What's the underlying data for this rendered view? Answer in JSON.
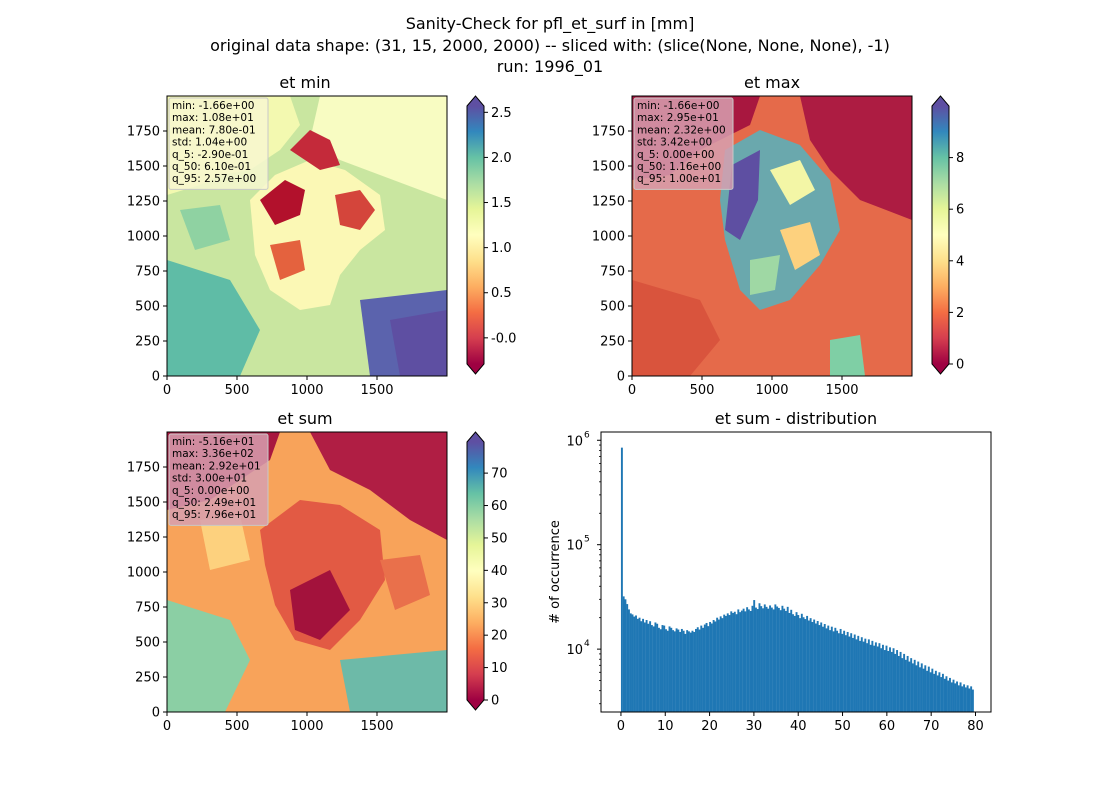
{
  "figure": {
    "title_lines": [
      "Sanity-Check for pfl_et_surf in [mm]",
      "original data shape: (31, 15, 2000, 2000) -- sliced with: (slice(None, None, None), -1)",
      "run: 1996_01"
    ]
  },
  "chart_data": [
    {
      "type": "heatmap",
      "title": "et min",
      "colormap": "Spectral",
      "xlim": [
        0,
        2000
      ],
      "ylim": [
        0,
        2000
      ],
      "x_ticks": [
        "0",
        "500",
        "1000",
        "1500"
      ],
      "y_ticks": [
        "0",
        "250",
        "500",
        "750",
        "1000",
        "1250",
        "1500",
        "1750"
      ],
      "colorbar": {
        "vmin": -0.29,
        "vmax": 2.57,
        "extend": "both",
        "ticks": [
          "-0.0",
          "0.5",
          "1.0",
          "1.5",
          "2.0",
          "2.5"
        ],
        "tick_values": [
          0,
          0.5,
          1.0,
          1.5,
          2.0,
          2.5
        ]
      },
      "stats": [
        "min: -1.66e+00",
        "max: 1.08e+01",
        "mean: 7.80e-01",
        "std: 1.04e+00",
        "q_5: -2.90e-01",
        "q_50: 6.10e-01",
        "q_95: 2.57e+00"
      ],
      "stats_box_color": "#f7f7d0"
    },
    {
      "type": "heatmap",
      "title": "et max",
      "colormap": "Spectral",
      "xlim": [
        0,
        2000
      ],
      "ylim": [
        0,
        2000
      ],
      "x_ticks": [
        "0",
        "500",
        "1000",
        "1500"
      ],
      "y_ticks": [
        "0",
        "250",
        "500",
        "750",
        "1000",
        "1250",
        "1500",
        "1750"
      ],
      "colorbar": {
        "vmin": 0,
        "vmax": 10,
        "extend": "both",
        "ticks": [
          "0",
          "2",
          "4",
          "6",
          "8"
        ],
        "tick_values": [
          0,
          2,
          4,
          6,
          8
        ]
      },
      "stats": [
        "min: -1.66e+00",
        "max: 2.95e+01",
        "mean: 2.32e+00",
        "std: 3.42e+00",
        "q_5: 0.00e+00",
        "q_50: 1.16e+00",
        "q_95: 1.00e+01"
      ],
      "stats_box_color": "#d7a0b0"
    },
    {
      "type": "heatmap",
      "title": "et sum",
      "colormap": "Spectral",
      "xlim": [
        0,
        2000
      ],
      "ylim": [
        0,
        2000
      ],
      "x_ticks": [
        "0",
        "500",
        "1000",
        "1500"
      ],
      "y_ticks": [
        "0",
        "250",
        "500",
        "750",
        "1000",
        "1250",
        "1500",
        "1750"
      ],
      "colorbar": {
        "vmin": 0,
        "vmax": 79.6,
        "extend": "both",
        "ticks": [
          "0",
          "10",
          "20",
          "30",
          "40",
          "50",
          "60",
          "70"
        ],
        "tick_values": [
          0,
          10,
          20,
          30,
          40,
          50,
          60,
          70
        ]
      },
      "stats": [
        "min: -5.16e+01",
        "max: 3.36e+02",
        "mean: 2.92e+01",
        "std: 3.00e+01",
        "q_5: 0.00e+00",
        "q_50: 2.49e+01",
        "q_95: 7.96e+01"
      ],
      "stats_box_color": "#d7a0b0"
    },
    {
      "type": "bar",
      "title": "et sum - distribution",
      "ylabel": "# of occurrence",
      "xlabel": "",
      "yscale": "log",
      "color": "#1f77b4",
      "xlim": [
        -4.5,
        83.5
      ],
      "ylim": [
        2500,
        1200000
      ],
      "x_ticks": [
        0,
        10,
        20,
        30,
        40,
        50,
        60,
        70,
        80
      ],
      "y_ticks": [
        {
          "value": 10000,
          "base": "10",
          "exp": "4"
        },
        {
          "value": 100000,
          "base": "10",
          "exp": "5"
        },
        {
          "value": 1000000,
          "base": "10",
          "exp": "6"
        }
      ],
      "bins": {
        "start": 0,
        "end": 79.6,
        "count": 200
      },
      "values": [
        850000,
        32000,
        30000,
        27000,
        24000,
        22000,
        21500,
        20500,
        21000,
        19500,
        20000,
        18500,
        19500,
        18000,
        19000,
        17500,
        18500,
        17000,
        16500,
        18000,
        17500,
        16000,
        15500,
        17000,
        16800,
        15500,
        15000,
        16500,
        16000,
        15200,
        14800,
        15800,
        15400,
        14600,
        15600,
        15000,
        14000,
        15200,
        14800,
        14400,
        15000,
        14600,
        15600,
        16200,
        15400,
        16800,
        16000,
        17200,
        17800,
        16600,
        18200,
        17600,
        19000,
        18400,
        20000,
        19200,
        20600,
        19800,
        21400,
        20800,
        22000,
        21200,
        23000,
        22200,
        22800,
        21600,
        24000,
        22600,
        23400,
        24400,
        23000,
        25200,
        24000,
        23200,
        26000,
        29500,
        25000,
        24200,
        27500,
        25800,
        24600,
        26800,
        25400,
        24400,
        26200,
        25000,
        24000,
        26800,
        25600,
        24800,
        23600,
        26000,
        24400,
        23200,
        25400,
        22200,
        23800,
        21600,
        20800,
        22600,
        21200,
        19800,
        21800,
        20200,
        19400,
        20800,
        18800,
        19800,
        18200,
        19200,
        17600,
        18600,
        17000,
        18000,
        16400,
        17400,
        15800,
        16800,
        15200,
        16400,
        14800,
        16000,
        15000,
        14200,
        15600,
        14000,
        15000,
        13600,
        14600,
        13200,
        14200,
        12800,
        13800,
        12400,
        13400,
        12000,
        13000,
        11800,
        12600,
        11400,
        12400,
        11000,
        12000,
        10800,
        11600,
        10600,
        11400,
        10200,
        11000,
        9800,
        10800,
        9600,
        10400,
        9400,
        10200,
        9000,
        9800,
        8600,
        9400,
        8200,
        9000,
        7900,
        8600,
        7600,
        8200,
        7300,
        7900,
        7000,
        7600,
        6700,
        7300,
        6500,
        7000,
        6200,
        6800,
        6000,
        6500,
        5800,
        6200,
        5600,
        6000,
        5400,
        5800,
        5200,
        5500,
        5000,
        5300,
        4800,
        5100,
        4700,
        4900,
        4500,
        4800,
        4400,
        4600,
        4300,
        4500,
        4200,
        4400,
        4100
      ]
    }
  ]
}
